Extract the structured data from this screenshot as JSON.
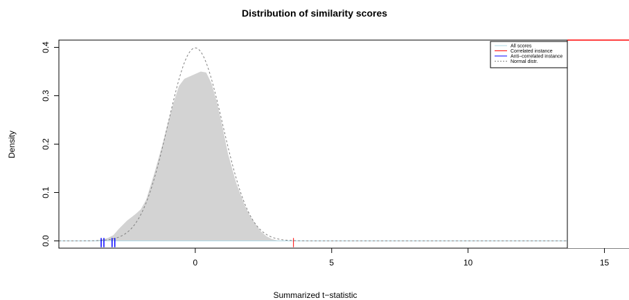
{
  "chart_data": {
    "type": "area",
    "title": "Distribution of similarity scores",
    "xlabel": "Summarized t−statistic",
    "ylabel": "Density",
    "xlim": [
      -5,
      15.9
    ],
    "ylim": [
      -0.015,
      0.415
    ],
    "x_ticks": [
      0,
      5,
      10,
      15
    ],
    "y_ticks": [
      0.0,
      0.1,
      0.2,
      0.3,
      0.4
    ],
    "y_tick_labels": [
      "0.0",
      "0.1",
      "0.2",
      "0.3",
      "0.4"
    ],
    "legend": {
      "placement": "top-right",
      "entries": [
        {
          "label": "All scores",
          "color": "#add8e6",
          "style": "solid"
        },
        {
          "label": "Correlated instance",
          "color": "#ff0000",
          "style": "solid"
        },
        {
          "label": "Anti−correlated instance",
          "color": "#0000ff",
          "style": "solid"
        },
        {
          "label": "Normal distr.",
          "color": "#7f7f7f",
          "style": "dashed"
        }
      ]
    },
    "density_fill_color": "#d3d3d3",
    "series": [
      {
        "name": "All scores",
        "x": [
          -5,
          -3.8,
          -3.5,
          -3.2,
          -3.0,
          -2.8,
          -2.5,
          -2.2,
          -2.0,
          -1.8,
          -1.5,
          -1.2,
          -1.0,
          -0.8,
          -0.6,
          -0.4,
          -0.2,
          0.0,
          0.2,
          0.4,
          0.6,
          0.8,
          1.0,
          1.2,
          1.5,
          1.8,
          2.0,
          2.2,
          2.4,
          2.6,
          2.8,
          3.0,
          3.5,
          15.9
        ],
        "y": [
          0.0,
          0.0,
          0.002,
          0.006,
          0.012,
          0.025,
          0.042,
          0.055,
          0.065,
          0.085,
          0.14,
          0.2,
          0.245,
          0.285,
          0.32,
          0.335,
          0.34,
          0.345,
          0.35,
          0.348,
          0.325,
          0.285,
          0.235,
          0.18,
          0.12,
          0.075,
          0.052,
          0.035,
          0.02,
          0.01,
          0.004,
          0.001,
          0.0,
          0.0
        ]
      },
      {
        "name": "Normal distr.",
        "distribution": "normal",
        "mean": 0,
        "sd": 1
      }
    ],
    "correlated_instances": [
      3.6,
      14.5
    ],
    "anti_correlated_instances": [
      -3.45,
      -3.35,
      -3.05,
      -2.95
    ]
  }
}
